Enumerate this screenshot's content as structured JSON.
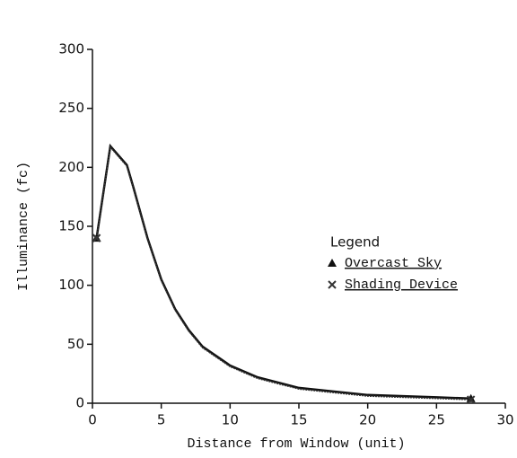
{
  "chart_data": {
    "type": "line",
    "x_label": "Distance from Window (unit)",
    "y_label": "Illuminance (fc)",
    "legend_title": "Legend",
    "legend_position": "right",
    "xlim": [
      0,
      30
    ],
    "xticks": [
      0,
      5,
      10,
      15,
      20,
      25,
      30
    ],
    "ylim": [
      0,
      300
    ],
    "yticks": [
      0,
      50,
      100,
      150,
      200,
      250,
      300
    ],
    "grid": false,
    "series": [
      {
        "name": "Overcast Sky",
        "color": "#111111",
        "marker": "triangle",
        "x": [
          0.3,
          1.3,
          2.5,
          3,
          4,
          5,
          6,
          7,
          8,
          10,
          12,
          15,
          20,
          25,
          27.5
        ],
        "values": [
          140,
          218,
          202,
          182,
          140,
          105,
          80,
          62,
          48,
          32,
          22,
          13,
          7,
          5,
          4
        ]
      },
      {
        "name": "Shading Device",
        "color": "#333333",
        "marker": "x",
        "x": [
          0.3,
          1.3,
          2.5,
          3,
          4,
          5,
          6,
          7,
          8,
          10,
          12,
          15,
          20,
          25,
          27.5
        ],
        "values": [
          140,
          217,
          201,
          181,
          139,
          104,
          79,
          61,
          47,
          31,
          21,
          12,
          6,
          4,
          3
        ]
      }
    ]
  }
}
